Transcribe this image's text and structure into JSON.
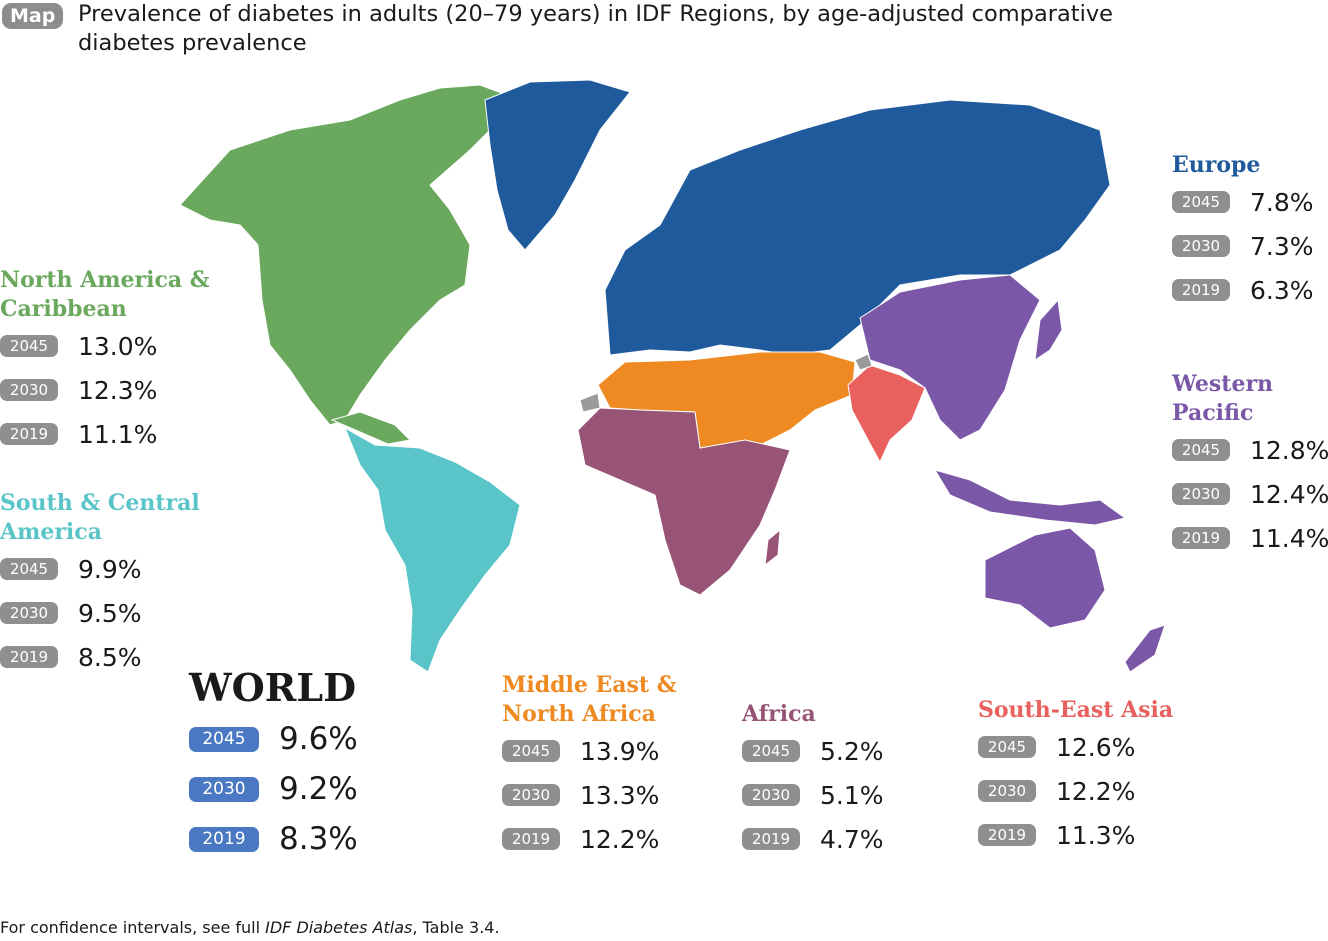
{
  "badge": "Map",
  "title": "Prevalence of diabetes in adults (20–79 years) in IDF Regions, by age-adjusted comparative diabetes prevalence",
  "colors": {
    "europe": "#1f5a9c",
    "north_america": "#69a85d",
    "south_central_america": "#59c5c8",
    "western_pacific": "#7b58a7",
    "mena": "#ee8a21",
    "africa": "#975477",
    "sea": "#e8615e",
    "no_data": "#9a9a9a"
  },
  "regions": {
    "north_america": {
      "name": "North America &\nCaribbean",
      "rows": [
        {
          "year": "2045",
          "value": "13.0%"
        },
        {
          "year": "2030",
          "value": "12.3%"
        },
        {
          "year": "2019",
          "value": "11.1%"
        }
      ]
    },
    "south_central_america": {
      "name": "South & Central\nAmerica",
      "rows": [
        {
          "year": "2045",
          "value": "9.9%"
        },
        {
          "year": "2030",
          "value": "9.5%"
        },
        {
          "year": "2019",
          "value": "8.5%"
        }
      ]
    },
    "world": {
      "name": "WORLD",
      "rows": [
        {
          "year": "2045",
          "value": "9.6%"
        },
        {
          "year": "2030",
          "value": "9.2%"
        },
        {
          "year": "2019",
          "value": "8.3%"
        }
      ]
    },
    "mena": {
      "name": "Middle East &\nNorth Africa",
      "rows": [
        {
          "year": "2045",
          "value": "13.9%"
        },
        {
          "year": "2030",
          "value": "13.3%"
        },
        {
          "year": "2019",
          "value": "12.2%"
        }
      ]
    },
    "africa": {
      "name": "Africa",
      "rows": [
        {
          "year": "2045",
          "value": "5.2%"
        },
        {
          "year": "2030",
          "value": "5.1%"
        },
        {
          "year": "2019",
          "value": "4.7%"
        }
      ]
    },
    "sea": {
      "name": "South-East Asia",
      "rows": [
        {
          "year": "2045",
          "value": "12.6%"
        },
        {
          "year": "2030",
          "value": "12.2%"
        },
        {
          "year": "2019",
          "value": "11.3%"
        }
      ]
    },
    "europe": {
      "name": "Europe",
      "rows": [
        {
          "year": "2045",
          "value": "7.8%"
        },
        {
          "year": "2030",
          "value": "7.3%"
        },
        {
          "year": "2019",
          "value": "6.3%"
        }
      ]
    },
    "western_pacific": {
      "name": "Western\nPacific",
      "rows": [
        {
          "year": "2045",
          "value": "12.8%"
        },
        {
          "year": "2030",
          "value": "12.4%"
        },
        {
          "year": "2019",
          "value": "11.4%"
        }
      ]
    }
  },
  "footnote": {
    "prefix": "For confidence intervals, see full ",
    "italic": "IDF Diabetes Atlas",
    "suffix": ", Table 3.4."
  }
}
